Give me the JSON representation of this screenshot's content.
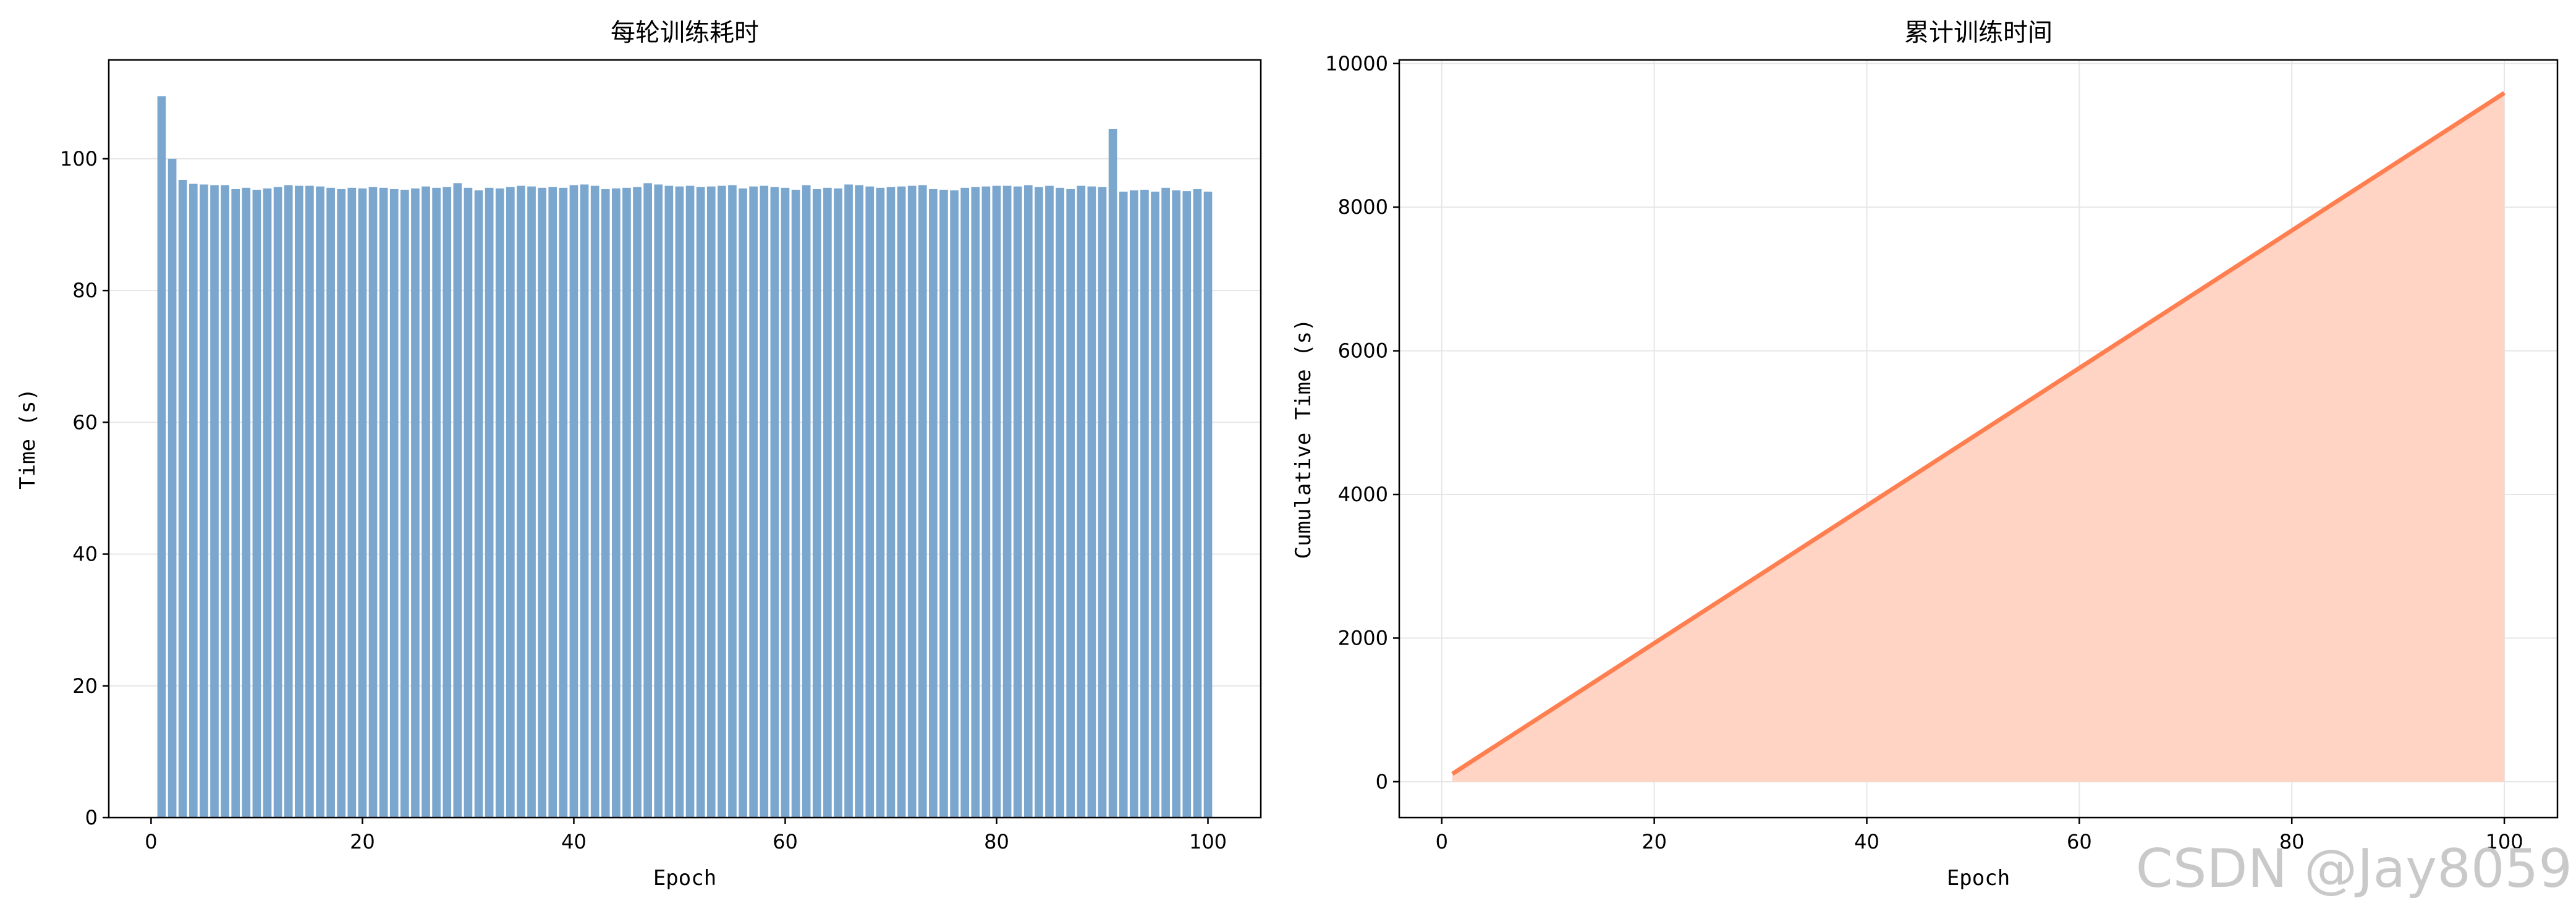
{
  "chart_data": [
    {
      "type": "bar",
      "title": "每轮训练耗时",
      "xlabel": "Epoch",
      "ylabel": "Time (s)",
      "xlim": [
        -4,
        105
      ],
      "ylim": [
        0,
        115
      ],
      "xticks": [
        0,
        20,
        40,
        60,
        80,
        100
      ],
      "yticks": [
        0,
        20,
        40,
        60,
        80,
        100
      ],
      "grid": "y",
      "color": "#7ba7cf",
      "x": [
        1,
        2,
        3,
        4,
        5,
        6,
        7,
        8,
        9,
        10,
        11,
        12,
        13,
        14,
        15,
        16,
        17,
        18,
        19,
        20,
        21,
        22,
        23,
        24,
        25,
        26,
        27,
        28,
        29,
        30,
        31,
        32,
        33,
        34,
        35,
        36,
        37,
        38,
        39,
        40,
        41,
        42,
        43,
        44,
        45,
        46,
        47,
        48,
        49,
        50,
        51,
        52,
        53,
        54,
        55,
        56,
        57,
        58,
        59,
        60,
        61,
        62,
        63,
        64,
        65,
        66,
        67,
        68,
        69,
        70,
        71,
        72,
        73,
        74,
        75,
        76,
        77,
        78,
        79,
        80,
        81,
        82,
        83,
        84,
        85,
        86,
        87,
        88,
        89,
        90,
        91,
        92,
        93,
        94,
        95,
        96,
        97,
        98,
        99,
        100
      ],
      "values": [
        109.5,
        100,
        96.8,
        96.2,
        96.1,
        96.0,
        96.0,
        95.4,
        95.6,
        95.3,
        95.5,
        95.7,
        96.0,
        95.9,
        95.9,
        95.8,
        95.6,
        95.4,
        95.6,
        95.5,
        95.7,
        95.6,
        95.4,
        95.3,
        95.5,
        95.8,
        95.6,
        95.7,
        96.3,
        95.6,
        95.2,
        95.6,
        95.5,
        95.7,
        95.9,
        95.8,
        95.6,
        95.7,
        95.6,
        96.0,
        96.1,
        95.9,
        95.4,
        95.5,
        95.6,
        95.7,
        96.3,
        96.1,
        95.9,
        95.8,
        95.9,
        95.7,
        95.8,
        95.9,
        96.0,
        95.5,
        95.8,
        95.9,
        95.7,
        95.6,
        95.3,
        96.0,
        95.4,
        95.6,
        95.5,
        96.1,
        96.0,
        95.8,
        95.6,
        95.7,
        95.8,
        95.9,
        96.0,
        95.4,
        95.3,
        95.2,
        95.6,
        95.7,
        95.8,
        95.9,
        95.9,
        95.8,
        96.0,
        95.7,
        95.9,
        95.6,
        95.4,
        95.9,
        95.8,
        95.7,
        104.5,
        95.0,
        95.2,
        95.3,
        95.0,
        95.6,
        95.2,
        95.1,
        95.4,
        95.0
      ]
    },
    {
      "type": "area",
      "title": "累计训练时间",
      "xlabel": "Epoch",
      "ylabel": "Cumulative Time (s)",
      "xlim": [
        -4,
        105
      ],
      "ylim": [
        -500,
        10050
      ],
      "xticks": [
        0,
        20,
        40,
        60,
        80,
        100
      ],
      "yticks": [
        0,
        2000,
        4000,
        6000,
        8000,
        10000
      ],
      "grid": "both",
      "line_color": "#ff7f50",
      "fill_color": "#ffd4c4",
      "points": [
        [
          1,
          109.5
        ],
        [
          100,
          9590
        ]
      ]
    }
  ],
  "watermark": "CSDN @Jay8059"
}
